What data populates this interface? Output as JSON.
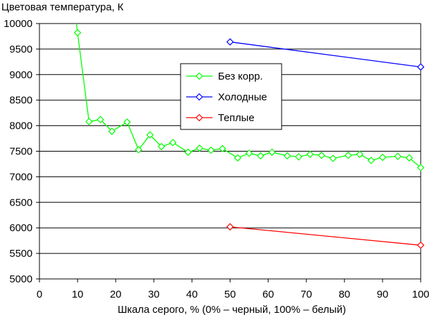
{
  "chart_data": {
    "type": "line",
    "title": "",
    "ylabel": "Цветовая температура, К",
    "xlabel": "Шкала серого, % (0% – черный, 100% – белый)",
    "xlim": [
      0,
      100
    ],
    "ylim": [
      5000,
      10000
    ],
    "xticks": [
      0,
      10,
      20,
      30,
      40,
      50,
      60,
      70,
      80,
      90,
      100
    ],
    "yticks": [
      5000,
      5500,
      6000,
      6500,
      7000,
      7500,
      8000,
      8500,
      9000,
      9500,
      10000
    ],
    "grid": "horizontal",
    "legend_position": "center",
    "series": [
      {
        "name": "Без корр.",
        "color": "#00ff00",
        "x": [
          10,
          13,
          16,
          19,
          23,
          26,
          29,
          32,
          35,
          39,
          42,
          45,
          48,
          52,
          55,
          58,
          61,
          65,
          68,
          71,
          74,
          77,
          81,
          84,
          87,
          90,
          94,
          97,
          100
        ],
        "y": [
          9820,
          8080,
          8120,
          7890,
          8070,
          7530,
          7820,
          7590,
          7670,
          7480,
          7560,
          7520,
          7550,
          7370,
          7460,
          7410,
          7480,
          7410,
          7390,
          7440,
          7420,
          7360,
          7420,
          7440,
          7320,
          7380,
          7400,
          7370,
          7180
        ],
        "start_from_top": true
      },
      {
        "name": "Холодные",
        "color": "#0000ff",
        "x": [
          50,
          100
        ],
        "y": [
          9640,
          9150
        ]
      },
      {
        "name": "Теплые",
        "color": "#ff0000",
        "x": [
          50,
          100
        ],
        "y": [
          6020,
          5660
        ]
      }
    ]
  }
}
